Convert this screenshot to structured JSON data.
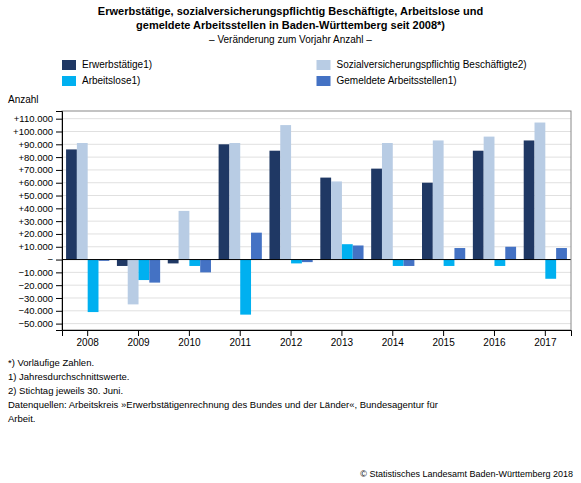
{
  "chart_data": {
    "type": "bar",
    "title": [
      "Erwerbstätige, sozialversicherungspflichtig Beschäftigte,  Arbeitslose und",
      "gemeldete Arbeitsstellen in Baden-Württemberg seit 2008*)"
    ],
    "subtitle": "– Veränderung zum Vorjahr Anzahl –",
    "ylabel": "Anzahl",
    "categories": [
      "2008",
      "2009",
      "2010",
      "2011",
      "2012",
      "2013",
      "2014",
      "2015",
      "2016",
      "2017"
    ],
    "series": [
      {
        "name": "Erwerbstätige1)",
        "color": "#1f3864",
        "values": [
          86000,
          -5000,
          -3000,
          90000,
          85000,
          64000,
          71000,
          60000,
          85000,
          93000
        ]
      },
      {
        "name": "Sozialversicherungspflichtig Beschäftigte2)",
        "color": "#b8cce4",
        "values": [
          91000,
          -35000,
          38000,
          91000,
          105000,
          61000,
          91000,
          93000,
          96000,
          107000
        ]
      },
      {
        "name": "Arbeitslose1)",
        "color": "#00b0f0",
        "values": [
          -41000,
          -16000,
          -5000,
          -43000,
          -3000,
          12000,
          -5000,
          -5000,
          -5000,
          -15000
        ]
      },
      {
        "name": "Gemeldete Arbeitsstellen1)",
        "color": "#4472c4",
        "values": [
          -1000,
          -18000,
          -10000,
          21000,
          -2000,
          11000,
          -5000,
          9000,
          10000,
          9000
        ]
      }
    ],
    "ylim": [
      -55000,
      116000
    ],
    "yticks": [
      {
        "value": -50000,
        "label": "−50.000"
      },
      {
        "value": -40000,
        "label": "−40.000"
      },
      {
        "value": -30000,
        "label": "−30.000"
      },
      {
        "value": -20000,
        "label": "−20.000"
      },
      {
        "value": -10000,
        "label": "−10.000"
      },
      {
        "value": 0,
        "label": "−"
      },
      {
        "value": 10000,
        "label": "+10.000"
      },
      {
        "value": 20000,
        "label": "+20.000"
      },
      {
        "value": 30000,
        "label": "+30.000"
      },
      {
        "value": 40000,
        "label": "+40.000"
      },
      {
        "value": 50000,
        "label": "+50.000"
      },
      {
        "value": 60000,
        "label": "+60.000"
      },
      {
        "value": 70000,
        "label": "+70.000"
      },
      {
        "value": 80000,
        "label": "+80.000"
      },
      {
        "value": 90000,
        "label": "+90.000"
      },
      {
        "value": 100000,
        "label": "+100.000"
      },
      {
        "value": 110000,
        "label": "+110.000"
      }
    ],
    "grid": true,
    "legend": "top",
    "annotations": [
      "*) Vorläufige Zahlen.",
      "1) Jahresdurchschnittswerte.",
      "2) Stichtag jeweils 30. Juni.",
      "Datenquellen: Arbeitskreis »Erwerbstätigenrechnung des Bundes und der Länder«, Bundesagentur für",
      "Arbeit.",
      "© Statistisches Landesamt Baden-Württemberg 2018"
    ]
  }
}
